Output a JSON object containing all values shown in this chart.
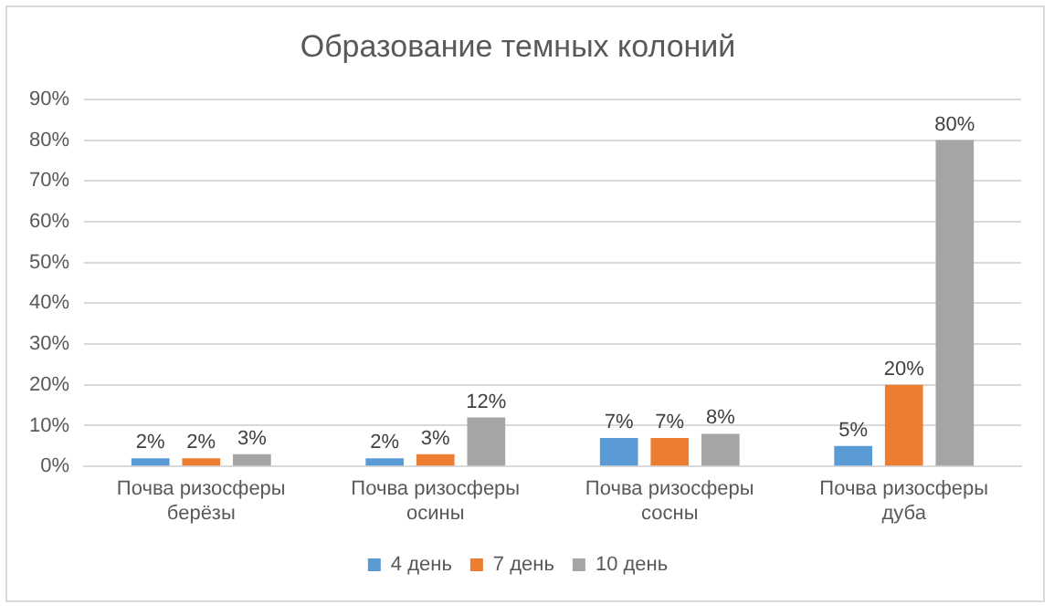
{
  "chart_data": {
    "type": "bar",
    "title": "Образование темных колоний",
    "categories": [
      "Почва ризосферы берёзы",
      "Почва ризосферы осины",
      "Почва ризосферы сосны",
      "Почва ризосферы дуба"
    ],
    "series": [
      {
        "name": "4 день",
        "color": "#5b9bd5",
        "values": [
          2,
          2,
          7,
          5
        ],
        "value_labels": [
          "2%",
          "2%",
          "7%",
          "5%"
        ]
      },
      {
        "name": "7 день",
        "color": "#ed7d31",
        "values": [
          2,
          3,
          7,
          20
        ],
        "value_labels": [
          "2%",
          "3%",
          "7%",
          "20%"
        ]
      },
      {
        "name": "10 день",
        "color": "#a5a5a5",
        "values": [
          3,
          12,
          8,
          80
        ],
        "value_labels": [
          "3%",
          "12%",
          "8%",
          "80%"
        ]
      }
    ],
    "ylim": [
      0,
      90
    ],
    "yticks": [
      {
        "value": 0,
        "label": "0%"
      },
      {
        "value": 10,
        "label": "10%"
      },
      {
        "value": 20,
        "label": "20%"
      },
      {
        "value": 30,
        "label": "30%"
      },
      {
        "value": 40,
        "label": "40%"
      },
      {
        "value": 50,
        "label": "50%"
      },
      {
        "value": 60,
        "label": "60%"
      },
      {
        "value": 70,
        "label": "70%"
      },
      {
        "value": 80,
        "label": "80%"
      },
      {
        "value": 90,
        "label": "90%"
      }
    ],
    "grid": "y",
    "legend": "bottom"
  }
}
